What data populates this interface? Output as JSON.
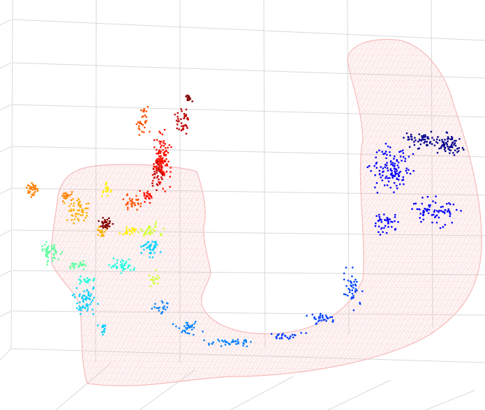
{
  "figure": {
    "kind": "3d-point-cloud-with-wireframe-mesh",
    "mesh": {
      "name": "u-shaped-volume",
      "color": "#f5b5b5"
    },
    "grid": {
      "visible": true,
      "color": "#d9d9d9"
    },
    "point_clusters": [
      {
        "name": "dark-blue-cluster",
        "color": "#00008f"
      },
      {
        "name": "blue-cluster",
        "color": "#0000ff"
      },
      {
        "name": "medium-blue-trail",
        "color": "#0040ff"
      },
      {
        "name": "light-blue-trail",
        "color": "#0080ff"
      },
      {
        "name": "cyan-cluster",
        "color": "#00cfff"
      },
      {
        "name": "aqua-cluster",
        "color": "#1fffe0"
      },
      {
        "name": "green-cluster",
        "color": "#60ff9f"
      },
      {
        "name": "yellow-green-cluster",
        "color": "#cfff30"
      },
      {
        "name": "yellow-cluster",
        "color": "#ffef00"
      },
      {
        "name": "orange-yellow-cluster",
        "color": "#ffb000"
      },
      {
        "name": "orange-cluster",
        "color": "#ff8000"
      },
      {
        "name": "dark-orange-cluster",
        "color": "#ff5000"
      },
      {
        "name": "red-cluster",
        "color": "#ff1000"
      },
      {
        "name": "dark-red-cluster",
        "color": "#bf0000"
      },
      {
        "name": "maroon-cluster",
        "color": "#800000"
      }
    ]
  }
}
